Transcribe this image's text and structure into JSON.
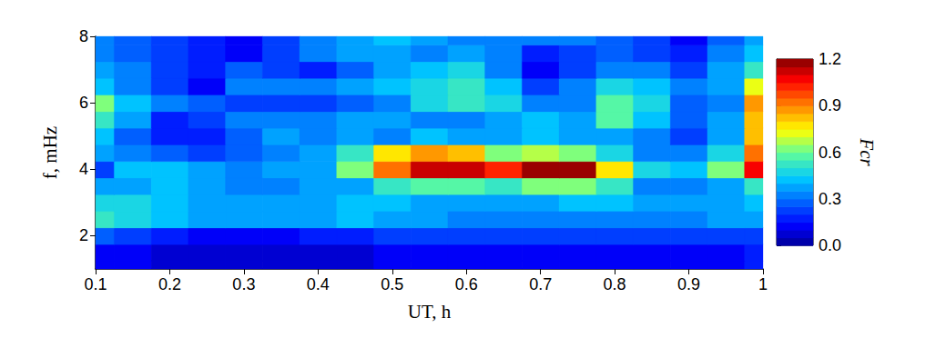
{
  "chart_data": {
    "type": "heatmap",
    "x_label": "UT, h",
    "y_label": "f, mHz",
    "xlim": [
      0.1,
      1
    ],
    "xticks": [
      0.1,
      0.2,
      0.3,
      0.4,
      0.5,
      0.6,
      0.7,
      0.8,
      0.9,
      1
    ],
    "ylim": [
      1,
      8
    ],
    "yticks": [
      2,
      4,
      6,
      8
    ],
    "x": [
      0.1,
      0.15,
      0.2,
      0.25,
      0.3,
      0.35,
      0.4,
      0.45,
      0.5,
      0.55,
      0.6,
      0.65,
      0.7,
      0.75,
      0.8,
      0.85,
      0.9,
      0.95,
      1
    ],
    "y": [
      1,
      1.5,
      2,
      2.5,
      3,
      3.5,
      4,
      4.5,
      5,
      5.5,
      6,
      6.5,
      7,
      7.5,
      8
    ],
    "cells": [
      [
        0.1,
        0.1,
        0.08,
        0.06,
        0.05,
        0.05,
        0.06,
        0.08,
        0.1,
        0.1,
        0.1,
        0.1,
        0.1,
        0.1,
        0.1,
        0.1,
        0.1,
        0.12,
        0.15
      ],
      [
        0.12,
        0.1,
        0.08,
        0.07,
        0.06,
        0.06,
        0.07,
        0.08,
        0.1,
        0.1,
        0.1,
        0.1,
        0.1,
        0.1,
        0.1,
        0.1,
        0.12,
        0.12,
        0.15
      ],
      [
        0.25,
        0.2,
        0.15,
        0.12,
        0.1,
        0.12,
        0.15,
        0.18,
        0.2,
        0.2,
        0.2,
        0.2,
        0.2,
        0.22,
        0.2,
        0.2,
        0.2,
        0.2,
        0.22
      ],
      [
        0.5,
        0.45,
        0.4,
        0.35,
        0.35,
        0.35,
        0.38,
        0.4,
        0.38,
        0.35,
        0.3,
        0.3,
        0.3,
        0.3,
        0.3,
        0.3,
        0.32,
        0.35,
        0.35
      ],
      [
        0.45,
        0.45,
        0.4,
        0.38,
        0.35,
        0.35,
        0.38,
        0.4,
        0.4,
        0.38,
        0.38,
        0.35,
        0.38,
        0.4,
        0.4,
        0.35,
        0.35,
        0.38,
        0.4
      ],
      [
        0.35,
        0.38,
        0.4,
        0.38,
        0.3,
        0.32,
        0.35,
        0.35,
        0.5,
        0.55,
        0.55,
        0.5,
        0.6,
        0.6,
        0.5,
        0.3,
        0.3,
        0.35,
        0.5
      ],
      [
        0.2,
        0.4,
        0.42,
        0.35,
        0.3,
        0.35,
        0.38,
        0.6,
        0.9,
        1.1,
        1.1,
        1.0,
        1.2,
        1.15,
        0.75,
        0.45,
        0.4,
        0.6,
        1.05
      ],
      [
        0.35,
        0.3,
        0.25,
        0.2,
        0.28,
        0.32,
        0.35,
        0.5,
        0.75,
        0.85,
        0.8,
        0.6,
        0.65,
        0.6,
        0.45,
        0.3,
        0.3,
        0.45,
        0.9
      ],
      [
        0.4,
        0.25,
        0.15,
        0.15,
        0.25,
        0.35,
        0.3,
        0.35,
        0.3,
        0.4,
        0.35,
        0.35,
        0.4,
        0.35,
        0.35,
        0.3,
        0.2,
        0.35,
        0.8
      ],
      [
        0.5,
        0.35,
        0.15,
        0.2,
        0.3,
        0.3,
        0.3,
        0.35,
        0.35,
        0.3,
        0.3,
        0.35,
        0.4,
        0.35,
        0.55,
        0.4,
        0.25,
        0.35,
        0.8
      ],
      [
        0.6,
        0.4,
        0.3,
        0.25,
        0.2,
        0.2,
        0.2,
        0.25,
        0.3,
        0.45,
        0.5,
        0.45,
        0.3,
        0.3,
        0.55,
        0.45,
        0.25,
        0.3,
        0.85
      ],
      [
        0.4,
        0.3,
        0.2,
        0.1,
        0.3,
        0.3,
        0.3,
        0.35,
        0.4,
        0.45,
        0.5,
        0.4,
        0.2,
        0.3,
        0.45,
        0.4,
        0.3,
        0.35,
        0.7
      ],
      [
        0.35,
        0.3,
        0.2,
        0.15,
        0.25,
        0.2,
        0.15,
        0.25,
        0.35,
        0.4,
        0.45,
        0.3,
        0.1,
        0.2,
        0.3,
        0.3,
        0.2,
        0.35,
        0.5
      ],
      [
        0.3,
        0.25,
        0.2,
        0.15,
        0.1,
        0.2,
        0.3,
        0.35,
        0.35,
        0.3,
        0.35,
        0.3,
        0.15,
        0.2,
        0.25,
        0.2,
        0.15,
        0.3,
        0.4
      ],
      [
        0.3,
        0.25,
        0.2,
        0.15,
        0.1,
        0.2,
        0.3,
        0.35,
        0.4,
        0.35,
        0.3,
        0.3,
        0.3,
        0.3,
        0.25,
        0.2,
        0.1,
        0.25,
        0.35
      ]
    ],
    "colorbar": {
      "label": "Fcr",
      "range": [
        0,
        1.2
      ],
      "ticks": [
        {
          "value": 0,
          "label": "0.0"
        },
        0.3,
        0.6,
        0.9,
        1.2
      ]
    }
  }
}
